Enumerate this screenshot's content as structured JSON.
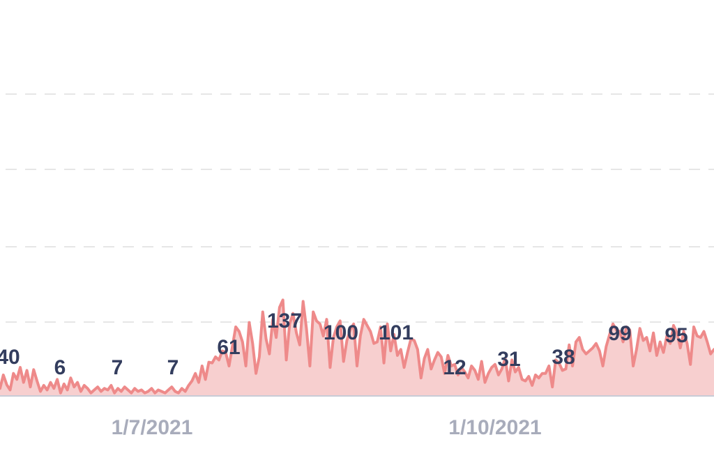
{
  "chart_data": {
    "type": "area",
    "title": "",
    "xlabel": "",
    "ylabel": "",
    "x_ticks": [
      "1/7/2021",
      "1/10/2021"
    ],
    "colors": {
      "line": "#ee8a8a",
      "fill": "#f7cfcf",
      "labels": "#333d5e",
      "ticks": "#a8acbb"
    },
    "grid": true,
    "ylim": [
      0,
      500
    ],
    "point_labels": [
      {
        "x": "6/22/2021",
        "value": 40,
        "text": "40"
      },
      {
        "x": "6/24/2021",
        "value": 6,
        "text": "6"
      },
      {
        "x": "7/1/2021",
        "value": 7,
        "text": "7"
      },
      {
        "x": "7/5/2021",
        "value": 7,
        "text": "7"
      },
      {
        "x": "7/18/2021",
        "value": 61,
        "text": "61"
      },
      {
        "x": "7/24/2021",
        "value": 137,
        "text": "137"
      },
      {
        "x": "8/16/2021",
        "value": 100,
        "text": "100"
      },
      {
        "x": "8/21/2021",
        "value": 101,
        "text": "101"
      },
      {
        "x": "8/28/2021",
        "value": 12,
        "text": "12"
      },
      {
        "x": "9/17/2021",
        "value": 31,
        "text": "31"
      },
      {
        "x": "10/10/2021",
        "value": 38,
        "text": "38"
      },
      {
        "x": "10/24/2021",
        "value": 99,
        "text": "99"
      },
      {
        "x": "10/28/2021",
        "value": 95,
        "text": "95"
      }
    ],
    "series": [
      {
        "values": [
          10,
          28,
          15,
          8,
          30,
          22,
          38,
          18,
          34,
          12,
          35,
          20,
          6,
          14,
          8,
          18,
          10,
          22,
          4,
          16,
          8,
          24,
          12,
          18,
          6,
          14,
          10,
          4,
          8,
          12,
          6,
          10,
          8,
          14,
          4,
          10,
          6,
          12,
          8,
          4,
          10,
          6,
          8,
          4,
          6,
          10,
          4,
          8,
          6,
          4,
          8,
          12,
          6,
          4,
          10,
          6,
          14,
          20,
          30,
          18,
          40,
          22,
          45,
          44,
          52,
          48,
          60,
          58,
          40,
          66,
          92,
          86,
          72,
          40,
          98,
          70,
          30,
          52,
          112,
          76,
          56,
          102,
          78,
          118,
          128,
          48,
          96,
          110,
          84,
          68,
          126,
          90,
          40,
          112,
          100,
          96,
          80,
          102,
          38,
          78,
          92,
          100,
          46,
          74,
          88,
          96,
          40,
          80,
          102,
          94,
          86,
          70,
          72,
          92,
          44,
          96,
          60,
          82,
          54,
          62,
          38,
          58,
          76,
          74,
          62,
          24,
          50,
          62,
          36,
          48,
          58,
          52,
          30,
          54,
          40,
          42,
          28,
          38,
          32,
          24,
          40,
          34,
          22,
          46,
          18,
          30,
          38,
          42,
          28,
          36,
          50,
          20,
          48,
          32,
          38,
          22,
          20,
          26,
          14,
          28,
          24,
          30,
          30,
          40,
          12,
          48,
          44,
          34,
          36,
          68,
          40,
          72,
          78,
          62,
          56,
          60,
          64,
          70,
          60,
          40,
          66,
          82,
          96,
          88,
          86,
          72,
          92,
          88,
          40,
          62,
          90,
          74,
          78,
          60,
          84,
          54,
          72,
          58,
          80,
          70,
          94,
          84,
          64,
          86,
          70,
          42,
          92,
          80,
          78,
          86,
          72,
          56,
          62
        ]
      }
    ]
  }
}
